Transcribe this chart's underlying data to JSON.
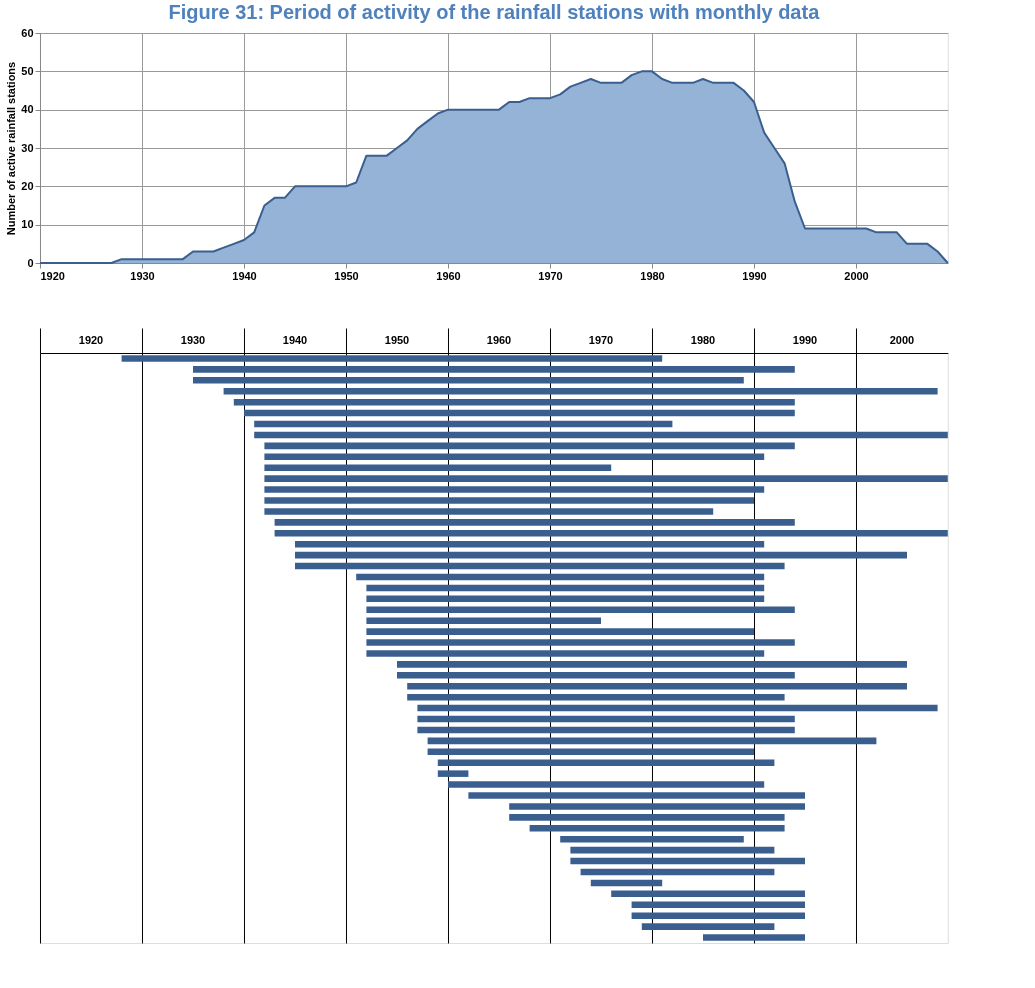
{
  "chart_data": [
    {
      "type": "area",
      "title": "Figure 31: Period of activity of the rainfall stations with monthly data",
      "ylabel": "Number of active rainfall stations",
      "color": "#95b3d7",
      "grid": true,
      "x": [
        1920,
        1927,
        1928,
        1934,
        1935,
        1937,
        1938,
        1939,
        1940,
        1941,
        1942,
        1943,
        1944,
        1945,
        1950,
        1951,
        1952,
        1954,
        1955,
        1956,
        1957,
        1958,
        1959,
        1960,
        1965,
        1966,
        1967,
        1968,
        1970,
        1971,
        1972,
        1973,
        1974,
        1975,
        1977,
        1978,
        1979,
        1980,
        1981,
        1982,
        1984,
        1985,
        1986,
        1988,
        1989,
        1990,
        1991,
        1992,
        1993,
        1994,
        1995,
        2000,
        2001,
        2002,
        2004,
        2005,
        2007,
        2008,
        2009
      ],
      "values": [
        0,
        0,
        1,
        1,
        3,
        3,
        4,
        5,
        6,
        8,
        15,
        17,
        17,
        20,
        20,
        21,
        28,
        28,
        30,
        32,
        35,
        37,
        39,
        40,
        40,
        42,
        42,
        43,
        43,
        44,
        46,
        47,
        48,
        47,
        47,
        49,
        50,
        50,
        48,
        47,
        47,
        48,
        47,
        47,
        45,
        42,
        34,
        30,
        26,
        16,
        9,
        9,
        9,
        8,
        8,
        5,
        5,
        3,
        0
      ],
      "xlim": [
        1920,
        2009
      ],
      "xticks": [
        1920,
        1930,
        1940,
        1950,
        1960,
        1970,
        1980,
        1990,
        2000
      ],
      "ylim": [
        0,
        60
      ],
      "yticks": [
        0,
        10,
        20,
        30,
        40,
        50,
        60
      ]
    },
    {
      "type": "bar",
      "orientation": "horizontal",
      "color": "#3a5f8f",
      "grid": "x",
      "tick_labels": false,
      "annotations": [
        "1920",
        "1930",
        "1940",
        "1950",
        "1960",
        "1970",
        "1980",
        "1990",
        "2000"
      ],
      "categories": [
        null,
        null,
        null,
        null,
        null,
        null,
        null,
        null,
        null,
        null,
        null,
        null,
        null,
        null,
        null,
        null,
        null,
        null,
        null,
        null,
        null,
        null,
        null,
        null,
        null,
        null,
        null,
        null,
        null,
        null,
        null,
        null,
        null,
        null,
        null,
        null,
        null,
        null,
        null,
        null,
        null,
        null,
        null,
        null,
        null,
        null,
        null,
        null,
        null,
        null,
        null,
        null,
        null,
        null
      ],
      "base": [
        1928,
        1935,
        1935,
        1938,
        1939,
        1940,
        1941,
        1941,
        1942,
        1942,
        1942,
        1942,
        1942,
        1942,
        1942,
        1943,
        1943,
        1945,
        1945,
        1945,
        1951,
        1952,
        1952,
        1952,
        1952,
        1952,
        1952,
        1952,
        1955,
        1955,
        1956,
        1956,
        1957,
        1957,
        1957,
        1958,
        1958,
        1959,
        1959,
        1960,
        1962,
        1966,
        1966,
        1968,
        1971,
        1972,
        1972,
        1973,
        1974,
        1976,
        1978,
        1978,
        1979,
        1985
      ],
      "values": [
        53,
        59,
        54,
        70,
        55,
        54,
        41,
        68,
        52,
        49,
        34,
        67,
        49,
        48,
        44,
        51,
        66,
        46,
        60,
        48,
        40,
        39,
        39,
        42,
        23,
        38,
        42,
        39,
        50,
        39,
        49,
        37,
        51,
        37,
        37,
        44,
        32,
        33,
        3,
        31,
        33,
        29,
        27,
        25,
        18,
        20,
        23,
        19,
        7,
        19,
        17,
        17,
        13,
        10
      ],
      "xlim": [
        1920,
        2009
      ],
      "xticks": [
        1920,
        1930,
        1940,
        1950,
        1960,
        1970,
        1980,
        1990,
        2000
      ]
    }
  ]
}
